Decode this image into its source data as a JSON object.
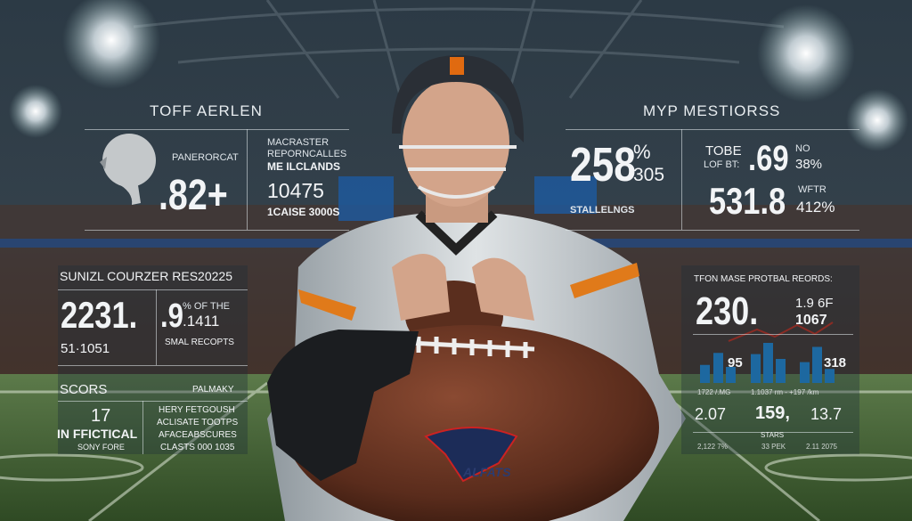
{
  "top_left": {
    "title": "TOFF AERLEN",
    "label": "PANERORCAT",
    "value": ".82+",
    "lines": [
      "MACRASTER",
      "REPORNCALLES",
      "ME ILCLANDS"
    ],
    "number": "10475",
    "footer": "1CAISE 3000S"
  },
  "top_right": {
    "title": "MYP MESTIORSS",
    "value": "258",
    "value_sup": "%",
    "value_sub": "305",
    "caption": "STALLELNGS",
    "label1": "TOBE",
    "label2": "LOF BT:",
    "value2": ".69",
    "value2_sup": "NO",
    "value2_sub": "38%",
    "value3": "531.8",
    "value3_sup": "WFTR",
    "value3_sub": "412%"
  },
  "mid_left": {
    "title": "SUNIZL COURZER RES20225",
    "value": "2231.",
    "sub": "51·1051",
    "value2": ".9",
    "value2_sup": "% OF THE",
    "value2_sub": ".1411",
    "caption": "SMAL RECOPTS"
  },
  "bottom_left": {
    "title": "SCORS",
    "title_right": "PALMAKY",
    "number": "17",
    "bold": "IN FFICTICAL",
    "caption": "SONY FORE",
    "lines": [
      "HERY FETGOUSH",
      "ACLISATE TOOTPS",
      "AFACEABSCURES",
      "CLASTS 000 1035"
    ]
  },
  "mid_right": {
    "title": "TFON MASE PROTBAL REORDS:",
    "value": "230.",
    "side1": "1.9 6F",
    "side2": "1067",
    "bar_label_left": "95",
    "bar_label_right": "318",
    "bars": [
      0.45,
      0.75,
      0.4,
      0.72,
      1.0,
      0.6,
      0.52,
      0.9,
      0.35
    ],
    "bar_color": "#1e88d8",
    "axis_labels": [
      "1722 /.MG",
      "1.1037 rm - +197 /km"
    ],
    "stats": [
      "2.07",
      "159,",
      "13.7"
    ],
    "stats_caption": "STARS",
    "footer": [
      "2,122 7%",
      "33 PEK",
      "2.11 2075"
    ]
  },
  "football_logo_text": "ALFATS"
}
